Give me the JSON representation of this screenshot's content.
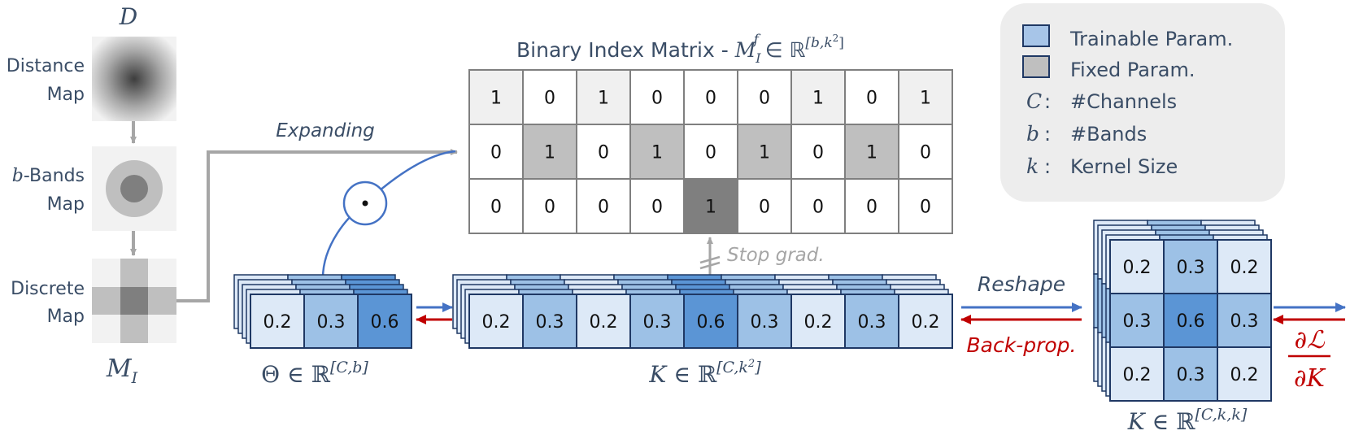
{
  "left_column": {
    "d_label": "D",
    "distance_map_line1": "Distance",
    "distance_map_line2": "Map",
    "bbands_italic": "b",
    "bbands_line1": "-Bands",
    "bbands_line2": "Map",
    "discrete_line1": "Discrete",
    "discrete_line2": "Map",
    "mi_label": "M",
    "mi_sub": "I"
  },
  "expanding_label": "Expanding",
  "odot_symbol": "·",
  "binary_matrix": {
    "title_text": "Binary Index Matrix - ",
    "title_M": "M",
    "title_sub": "I",
    "title_sup": "f",
    "title_in": " ∈ ℝ",
    "title_dims": "[b,k",
    "title_dims_sq": "2",
    "title_dims_close": "]",
    "rows": [
      [
        "1",
        "0",
        "1",
        "0",
        "0",
        "0",
        "1",
        "0",
        "1"
      ],
      [
        "0",
        "1",
        "0",
        "1",
        "0",
        "1",
        "0",
        "1",
        "0"
      ],
      [
        "0",
        "0",
        "0",
        "0",
        "1",
        "0",
        "0",
        "0",
        "0"
      ]
    ],
    "row_fills": [
      [
        "light",
        "white",
        "light",
        "white",
        "white",
        "white",
        "light",
        "white",
        "light"
      ],
      [
        "white",
        "gray",
        "white",
        "gray",
        "white",
        "gray",
        "white",
        "gray",
        "white"
      ],
      [
        "white",
        "white",
        "white",
        "white",
        "dark",
        "white",
        "white",
        "white",
        "white"
      ]
    ]
  },
  "stop_grad_label": "Stop grad.",
  "theta": {
    "values": [
      "0.2",
      "0.3",
      "0.6"
    ],
    "shades": [
      0,
      1,
      2
    ],
    "label_theta": "Θ",
    "label_in": " ∈ ℝ",
    "label_dims": "[C,b]"
  },
  "kernel_flat": {
    "values": [
      "0.2",
      "0.3",
      "0.2",
      "0.3",
      "0.6",
      "0.3",
      "0.2",
      "0.3",
      "0.2"
    ],
    "shades": [
      0,
      1,
      0,
      1,
      2,
      1,
      0,
      1,
      0
    ],
    "label_K": "K",
    "label_in": " ∈ ℝ",
    "label_dims": "[C,k",
    "label_sq": "2",
    "label_close": "]"
  },
  "reshape_label": "Reshape",
  "backprop_label": "Back-prop.",
  "kernel_grid": {
    "values": [
      [
        "0.2",
        "0.3",
        "0.2"
      ],
      [
        "0.3",
        "0.6",
        "0.3"
      ],
      [
        "0.2",
        "0.3",
        "0.2"
      ]
    ],
    "shades": [
      [
        0,
        1,
        0
      ],
      [
        1,
        2,
        1
      ],
      [
        0,
        1,
        0
      ]
    ],
    "label_K": "K",
    "label_in": " ∈ ℝ",
    "label_dims": "[C,k,k]"
  },
  "gradient": {
    "numerator": "∂ℒ",
    "denominator": "∂K"
  },
  "legend": {
    "trainable": "Trainable Param.",
    "fixed": "Fixed Param.",
    "items": [
      {
        "sym": "C",
        "text": "#Channels"
      },
      {
        "sym": "b",
        "text": "#Bands"
      },
      {
        "sym": "k",
        "text": "Kernel Size"
      }
    ]
  },
  "colors": {
    "text": "#3a4d66",
    "blue_shades": [
      "#dde9f7",
      "#9dc1e6",
      "#5b95d5"
    ],
    "cell_border": "#1f3864",
    "matrix_light": "#f0f0f0",
    "matrix_gray": "#bfbfbf",
    "matrix_dark": "#7f7f7f",
    "arrow_gray": "#a6a6a6",
    "arrow_blue": "#4472c4",
    "arrow_red": "#c00000",
    "legend_bg": "#ededed"
  }
}
